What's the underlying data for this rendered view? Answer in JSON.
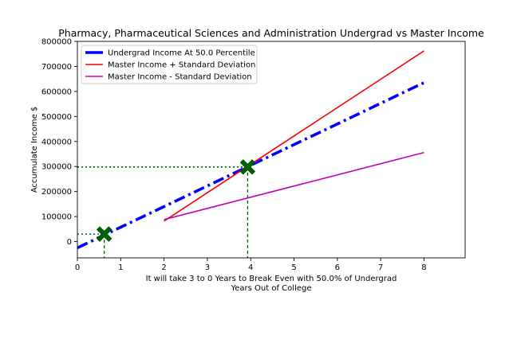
{
  "chart_data": {
    "type": "line",
    "title": "Pharmacy, Pharmaceutical Sciences and Administration Undergrad vs Master Income",
    "xlabel_line1": "It will take 3 to 0 Years to Break Even with 50.0% of Undergrad",
    "xlabel_line2": "Years Out of College",
    "ylabel": "Accumulate Income $",
    "xlim": [
      0,
      8.95
    ],
    "ylim": [
      -65000,
      800000
    ],
    "xticks": [
      0,
      1,
      2,
      3,
      4,
      5,
      6,
      7,
      8
    ],
    "xtick_labels": [
      "0",
      "1",
      "2",
      "3",
      "4",
      "5",
      "6",
      "7",
      "8"
    ],
    "yticks": [
      0,
      100000,
      200000,
      300000,
      400000,
      500000,
      600000,
      700000,
      800000
    ],
    "ytick_labels": [
      "0",
      "100000",
      "200000",
      "300000",
      "400000",
      "500000",
      "600000",
      "700000",
      "800000"
    ],
    "grid": false,
    "legend_position": "top-left",
    "series": [
      {
        "name": "Undergrad Income At 50.0 Percentile",
        "color": "#0000ff",
        "style": "dashdot",
        "x": [
          0,
          8
        ],
        "y": [
          -25000,
          635000
        ]
      },
      {
        "name": "Master Income + Standard Deviation",
        "color": "#ff0000",
        "style": "solid",
        "x": [
          2,
          8
        ],
        "y": [
          82000,
          762000
        ]
      },
      {
        "name": "Master Income - Standard Deviation",
        "color": "#bf00bf",
        "style": "solid",
        "x": [
          2,
          8
        ],
        "y": [
          88000,
          356000
        ]
      }
    ],
    "markers": [
      {
        "x": 0.62,
        "y": 30000,
        "color": "#006400",
        "symbol": "X"
      },
      {
        "x": 3.93,
        "y": 298000,
        "color": "#006400",
        "symbol": "X"
      }
    ],
    "reference_lines": [
      {
        "x": 0.62,
        "y": 30000,
        "color": "#006400"
      },
      {
        "x": 3.93,
        "y": 298000,
        "color": "#006400"
      }
    ]
  }
}
